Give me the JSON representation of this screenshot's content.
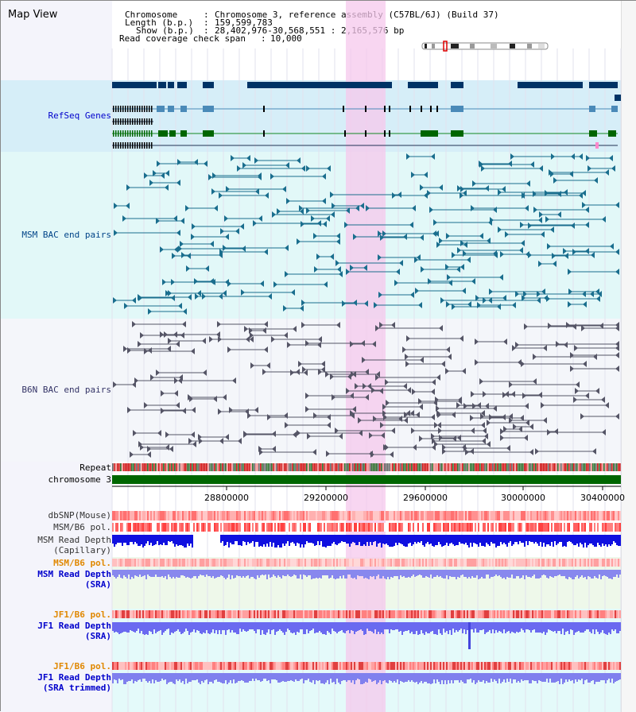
{
  "title": "Map View",
  "header": {
    "chromosome_label": "Chromosome",
    "chromosome_value": "Chromosome 3, reference assembly (C57BL/6J) (Build 37)",
    "length_label": "Length (b.p.)",
    "length_value": "159,599,783",
    "show_label": "Show (b.p.)",
    "show_value": "28,402,976-30,568,551 : 2,165,576 bp",
    "coverage_label": "Read coverage check span",
    "coverage_value": "10,000"
  },
  "tracks": {
    "refseq": "RefSeq Genes",
    "msm_bac": "MSM BAC end pairs",
    "b6n_bac": "B6N BAC end pairs",
    "repeat": "Repeat",
    "chromosome": "chromosome 3",
    "dbsnp": "dbSNP(Mouse)",
    "msm_pol": "MSM/B6 pol.",
    "msm_depth_cap_1": "MSM Read Depth",
    "msm_depth_cap_2": "(Capillary)",
    "msm_pol_sra": "MSM/B6 pol.",
    "msm_depth_sra_1": "MSM Read Depth",
    "msm_depth_sra_2": "(SRA)",
    "jf1_pol_1": "JF1/B6 pol.",
    "jf1_depth_1": "JF1 Read Depth",
    "jf1_depth_1_sub": "(SRA)",
    "jf1_pol_2": "JF1/B6 pol.",
    "jf1_depth_2": "JF1 Read Depth",
    "jf1_depth_2_sub": "(SRA trimmed)"
  },
  "axis": {
    "ticks": [
      "28800000",
      "29200000",
      "29600000",
      "30000000",
      "30400000"
    ]
  },
  "colors": {
    "refseq_bg": "#d6eef8",
    "msm_bg": "#e2f8f8",
    "b6n_bg": "#f4f6fa",
    "highlight": "#f6c8ec",
    "refseq_text": "#0000cc",
    "msm_text": "#004488",
    "b6n_text": "#333366",
    "sra_label": "#e08800",
    "depth_label": "#0000cc"
  }
}
